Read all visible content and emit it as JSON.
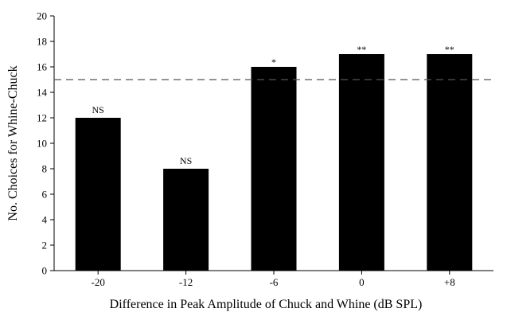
{
  "chart_data": {
    "type": "bar",
    "title": "",
    "xlabel": "Difference in Peak Amplitude of Chuck and Whine (dB SPL)",
    "ylabel": "No. Choices for Whine-Chuck",
    "categories": [
      "-20",
      "-12",
      "-6",
      "0",
      "+8"
    ],
    "values": [
      12,
      8,
      16,
      17,
      17
    ],
    "annotations": [
      "NS",
      "NS",
      "*",
      "**",
      "**"
    ],
    "ylim": [
      0,
      20
    ],
    "yticks": [
      0,
      2,
      4,
      6,
      8,
      10,
      12,
      14,
      16,
      18,
      20
    ],
    "reference_line": {
      "y": 15,
      "style": "dashed"
    },
    "grid": false,
    "legend": "none",
    "bar_color": "#000000",
    "reference_line_color": "#555555"
  }
}
